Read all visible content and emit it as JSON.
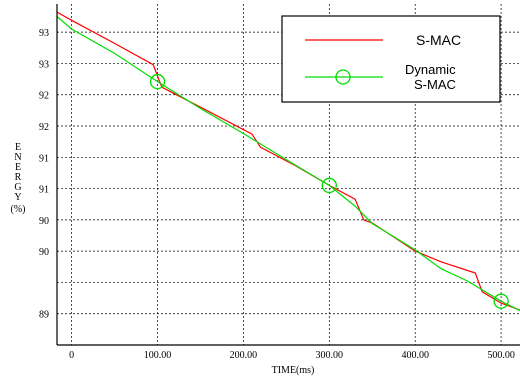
{
  "chart_data": {
    "type": "line",
    "xlabel": "TIME(ms)",
    "ylabel": "ENERGY(%)",
    "xlim": [
      -17,
      522
    ],
    "ylim": [
      88.5,
      93.95
    ],
    "x_ticks": [
      0,
      100,
      200,
      300,
      400,
      500
    ],
    "x_tick_labels": [
      "0",
      "100.00",
      "200.00",
      "300.00",
      "400.00",
      "500.00"
    ],
    "y_ticks": [
      89,
      89.5,
      90,
      90.5,
      91,
      91.5,
      92,
      92.5,
      93,
      93.5
    ],
    "y_tick_labels": [
      "89",
      "",
      "90",
      "90",
      "91",
      "91",
      "92",
      "92",
      "93",
      "93"
    ],
    "grid": true,
    "legend_position": "top-right",
    "series": [
      {
        "name": "S-MAC",
        "color": "#ff0000",
        "marker": "none",
        "points": [
          [
            -17,
            93.82
          ],
          [
            0,
            93.69
          ],
          [
            50,
            93.32
          ],
          [
            95,
            92.98
          ],
          [
            105,
            92.62
          ],
          [
            150,
            92.3
          ],
          [
            210,
            91.87
          ],
          [
            220,
            91.66
          ],
          [
            260,
            91.37
          ],
          [
            300,
            91.05
          ],
          [
            330,
            90.83
          ],
          [
            340,
            90.5
          ],
          [
            350,
            90.45
          ],
          [
            400,
            90.0
          ],
          [
            430,
            89.83
          ],
          [
            470,
            89.65
          ],
          [
            478,
            89.35
          ],
          [
            500,
            89.17
          ],
          [
            522,
            89.06
          ]
        ]
      },
      {
        "name": "Dynamic\nS-MAC",
        "legend_lines": [
          "Dynamic",
          "S-MAC"
        ],
        "color": "#00dd00",
        "marker": "circle",
        "marker_x": [
          100,
          300,
          500
        ],
        "points": [
          [
            -17,
            93.75
          ],
          [
            0,
            93.55
          ],
          [
            50,
            93.16
          ],
          [
            100,
            92.71
          ],
          [
            150,
            92.28
          ],
          [
            200,
            91.88
          ],
          [
            250,
            91.46
          ],
          [
            300,
            91.05
          ],
          [
            330,
            90.72
          ],
          [
            350,
            90.44
          ],
          [
            400,
            90.02
          ],
          [
            430,
            89.72
          ],
          [
            460,
            89.53
          ],
          [
            500,
            89.2
          ],
          [
            522,
            89.05
          ]
        ]
      }
    ]
  }
}
